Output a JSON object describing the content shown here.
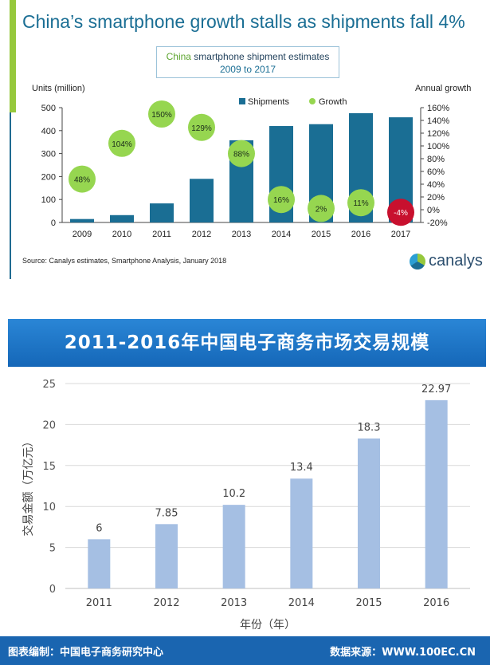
{
  "chart_data": [
    {
      "type": "bar",
      "title": "China’s smartphone growth stalls as shipments fall 4%",
      "subtitle_accent": "China",
      "subtitle_rest": " smartphone shipment estimates",
      "subtitle_years": "2009 to 2017",
      "ylabel": "Units (million)",
      "y2label": "Annual growth",
      "ylim": [
        0,
        500
      ],
      "y_ticks": [
        "0",
        "100",
        "200",
        "300",
        "400",
        "500"
      ],
      "y2lim": [
        -20,
        160
      ],
      "y2_ticks": [
        "-20%",
        "0%",
        "20%",
        "40%",
        "60%",
        "80%",
        "100%",
        "120%",
        "140%",
        "160%"
      ],
      "categories": [
        "2009",
        "2010",
        "2011",
        "2012",
        "2013",
        "2014",
        "2015",
        "2016",
        "2017"
      ],
      "legend_shipments": "Shipments",
      "legend_growth": "Growth",
      "legend_position": "top-right",
      "series": [
        {
          "name": "Shipments",
          "values": [
            15,
            32,
            83,
            190,
            358,
            420,
            428,
            476,
            458
          ]
        },
        {
          "name": "Growth",
          "values": [
            48,
            104,
            150,
            129,
            88,
            16,
            2,
            11,
            -4
          ],
          "labels": [
            "48%",
            "104%",
            "150%",
            "129%",
            "88%",
            "16%",
            "2%",
            "11%",
            "-4%"
          ]
        }
      ],
      "colors": {
        "bar": "#1a6e94",
        "growth_positive": "#96d650",
        "growth_negative": "#c8102e"
      },
      "source": "Source: Canalys estimates, Smartphone Analysis, January 2018",
      "logo_text": "canalys"
    },
    {
      "type": "bar",
      "title": "2011-2016年中国电子商务市场交易规模",
      "ylabel": "交易金额（万亿元）",
      "xlabel": "年份（年）",
      "ylim": [
        0,
        25
      ],
      "y_ticks": [
        "0",
        "5",
        "10",
        "15",
        "20",
        "25"
      ],
      "categories": [
        "2011",
        "2012",
        "2013",
        "2014",
        "2015",
        "2016"
      ],
      "values": [
        6,
        7.85,
        10.2,
        13.4,
        18.3,
        22.97
      ],
      "value_labels": [
        "6",
        "7.85",
        "10.2",
        "13.4",
        "18.3",
        "22.97"
      ],
      "colors": {
        "bar": "#a5bfe3",
        "header": "#1a6bc0"
      },
      "footer_left": "图表编制：中国电子商务研究中心",
      "footer_right": "数据来源：WWW.100EC.CN"
    }
  ]
}
